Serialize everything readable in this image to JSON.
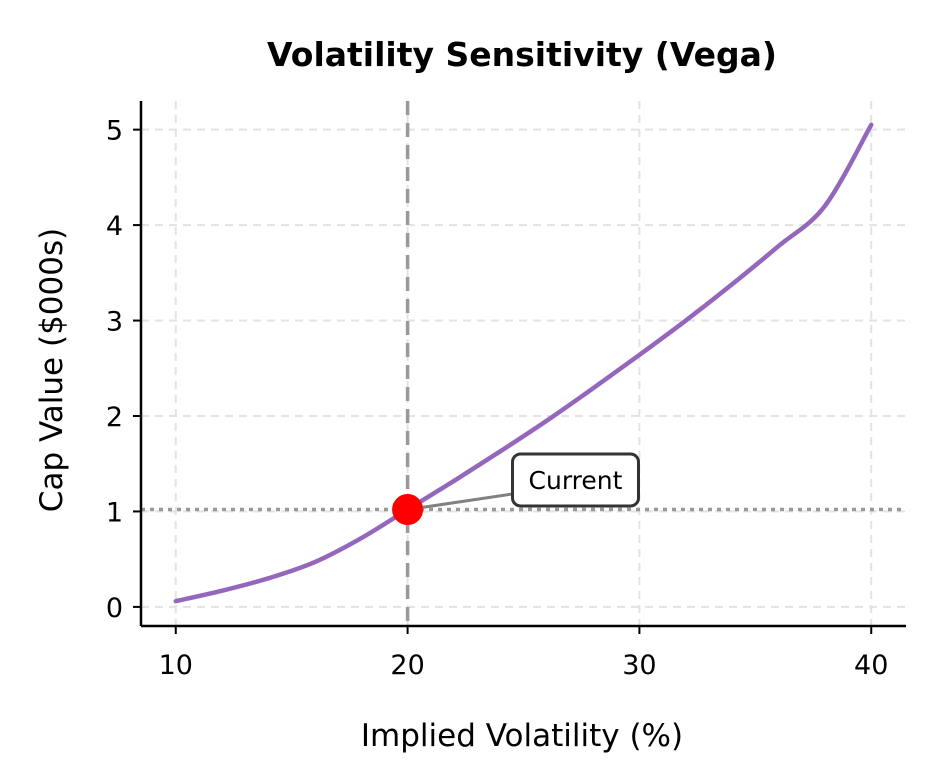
{
  "chart_data": {
    "type": "line",
    "title": "Volatility Sensitivity (Vega)",
    "xlabel": "Implied Volatility (%)",
    "ylabel": "Cap Value ($000s)",
    "xlim": [
      8.5,
      41.5
    ],
    "ylim": [
      -0.2,
      5.3
    ],
    "xticks": [
      10,
      20,
      30,
      40
    ],
    "yticks": [
      0,
      1,
      2,
      3,
      4,
      5
    ],
    "grid": true,
    "series": [
      {
        "name": "Cap Value",
        "color": "#9467bd",
        "x": [
          10,
          12,
          14,
          16,
          18,
          20,
          22,
          24,
          26,
          28,
          30,
          32,
          34,
          36,
          38,
          40
        ],
        "y": [
          0.06,
          0.17,
          0.3,
          0.47,
          0.72,
          1.02,
          1.32,
          1.63,
          1.95,
          2.29,
          2.64,
          3.0,
          3.38,
          3.78,
          4.2,
          5.05
        ]
      }
    ],
    "reference_lines": {
      "vertical_x": 20,
      "horizontal_y": 1.02,
      "color": "#999999"
    },
    "current_point": {
      "x": 20,
      "y": 1.02,
      "color": "#ff0000"
    },
    "annotation": {
      "text": "Current",
      "text_x": 25,
      "text_y": 1.33
    }
  }
}
